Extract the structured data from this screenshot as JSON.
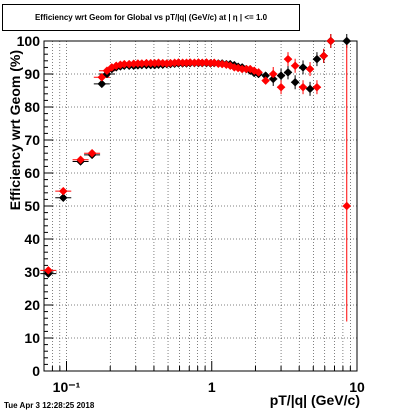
{
  "footer": {
    "timestamp": "Tue Apr  3 12:28:25 2018"
  },
  "chart_data": {
    "type": "scatter",
    "title": "Efficiency wrt Geom for Global vs pT/|q| (GeV/c) at | η | <= 1.0",
    "xlabel": "pT/|q| (GeV/c)",
    "ylabel": "Efficiency wrt Geom (%)",
    "xscale": "log",
    "xlim": [
      0.07,
      10
    ],
    "ylim": [
      0,
      100
    ],
    "x_tick_labels": [
      "10⁻¹",
      "1",
      "10"
    ],
    "y_tick_labels": [
      "0",
      "10",
      "20",
      "30",
      "40",
      "50",
      "60",
      "70",
      "80",
      "90",
      "100"
    ],
    "grid": true,
    "legend": "none",
    "series": [
      {
        "color": "#000000",
        "marker": "diamond",
        "x": [
          0.075,
          0.095,
          0.125,
          0.15,
          0.175,
          0.19,
          0.205,
          0.22,
          0.235,
          0.25,
          0.27,
          0.29,
          0.31,
          0.33,
          0.355,
          0.38,
          0.405,
          0.43,
          0.46,
          0.49,
          0.52,
          0.555,
          0.59,
          0.63,
          0.67,
          0.71,
          0.76,
          0.81,
          0.86,
          0.92,
          0.98,
          1.04,
          1.11,
          1.18,
          1.26,
          1.34,
          1.43,
          1.52,
          1.62,
          1.73,
          1.84,
          1.96,
          2.1,
          2.35,
          2.65,
          3.0,
          3.35,
          3.75,
          4.25,
          4.75,
          5.3,
          5.9,
          6.6,
          8.5
        ],
        "y": [
          29.5,
          52.5,
          63.5,
          65.5,
          87,
          90,
          91.5,
          92,
          92.3,
          92.5,
          92.5,
          92.5,
          92.6,
          92.7,
          92.7,
          92.7,
          92.7,
          92.8,
          92.8,
          93.0,
          93.0,
          93.1,
          93.2,
          93.2,
          93.2,
          93.3,
          93.3,
          93.3,
          93.3,
          93.3,
          93.2,
          93.3,
          93.2,
          93.2,
          93.0,
          93.0,
          92.7,
          92.2,
          92.0,
          91.5,
          91.0,
          90.3,
          90.0,
          89.5,
          88.5,
          89.5,
          90.5,
          87.5,
          92.0,
          85.5,
          94.5,
          95.5,
          100,
          100
        ]
      },
      {
        "color": "#ff0000",
        "marker": "diamond",
        "x": [
          0.075,
          0.095,
          0.125,
          0.15,
          0.175,
          0.19,
          0.205,
          0.22,
          0.235,
          0.25,
          0.27,
          0.29,
          0.31,
          0.33,
          0.355,
          0.38,
          0.405,
          0.43,
          0.46,
          0.49,
          0.52,
          0.555,
          0.59,
          0.63,
          0.67,
          0.71,
          0.76,
          0.81,
          0.86,
          0.92,
          0.98,
          1.04,
          1.11,
          1.18,
          1.26,
          1.34,
          1.43,
          1.52,
          1.62,
          1.73,
          1.84,
          1.96,
          2.1,
          2.35,
          2.65,
          3.0,
          3.35,
          3.75,
          4.25,
          4.75,
          5.3,
          5.9,
          6.6,
          8.5
        ],
        "y": [
          30.5,
          54.5,
          64.0,
          66.0,
          89,
          91,
          92.0,
          92.5,
          92.8,
          93.0,
          93.0,
          93.1,
          93.2,
          93.2,
          93.3,
          93.3,
          93.3,
          93.4,
          93.3,
          93.2,
          93.3,
          93.4,
          93.5,
          93.4,
          93.4,
          93.5,
          93.4,
          93.5,
          93.4,
          93.5,
          93.3,
          93.4,
          93.1,
          93.0,
          92.8,
          92.5,
          92.0,
          91.8,
          91.5,
          91.5,
          91.5,
          91.0,
          90.5,
          88.0,
          90.0,
          86.0,
          94.5,
          92.5,
          86.0,
          91.5,
          86.0,
          95.5,
          100,
          50
        ]
      }
    ]
  }
}
